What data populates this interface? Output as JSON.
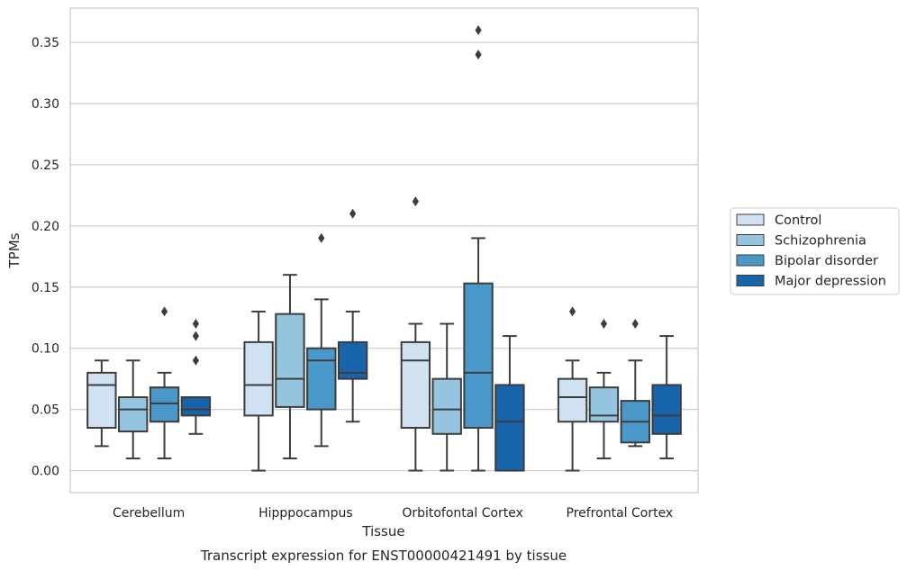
{
  "chart_data": {
    "type": "box",
    "title": "",
    "caption": "Transcript expression for ENST00000421491 by tissue",
    "xlabel": "Tissue",
    "ylabel": "TPMs",
    "ylim": [
      -0.018,
      0.378
    ],
    "yticks": [
      0.0,
      0.05,
      0.1,
      0.15,
      0.2,
      0.25,
      0.3,
      0.35
    ],
    "ytick_labels": [
      "0.00",
      "0.05",
      "0.10",
      "0.15",
      "0.20",
      "0.25",
      "0.30",
      "0.35"
    ],
    "grid": "horizontal",
    "legend_position": "right",
    "categories": [
      "Cerebellum",
      "Hipppocampus",
      "Orbitofontal Cortex",
      "Prefrontal Cortex"
    ],
    "series": [
      {
        "name": "Control",
        "color": "#d0e1f2",
        "boxes": [
          {
            "whisker_low": 0.02,
            "q1": 0.035,
            "median": 0.07,
            "q3": 0.08,
            "whisker_high": 0.09,
            "outliers": []
          },
          {
            "whisker_low": 0.0,
            "q1": 0.045,
            "median": 0.07,
            "q3": 0.105,
            "whisker_high": 0.13,
            "outliers": []
          },
          {
            "whisker_low": 0.0,
            "q1": 0.035,
            "median": 0.09,
            "q3": 0.105,
            "whisker_high": 0.12,
            "outliers": [
              0.22
            ]
          },
          {
            "whisker_low": 0.0,
            "q1": 0.04,
            "median": 0.06,
            "q3": 0.075,
            "whisker_high": 0.09,
            "outliers": [
              0.13
            ]
          }
        ]
      },
      {
        "name": "Schizophrenia",
        "color": "#94c4df",
        "boxes": [
          {
            "whisker_low": 0.01,
            "q1": 0.032,
            "median": 0.05,
            "q3": 0.06,
            "whisker_high": 0.09,
            "outliers": []
          },
          {
            "whisker_low": 0.01,
            "q1": 0.052,
            "median": 0.075,
            "q3": 0.128,
            "whisker_high": 0.16,
            "outliers": []
          },
          {
            "whisker_low": 0.0,
            "q1": 0.03,
            "median": 0.05,
            "q3": 0.075,
            "whisker_high": 0.12,
            "outliers": []
          },
          {
            "whisker_low": 0.01,
            "q1": 0.04,
            "median": 0.045,
            "q3": 0.068,
            "whisker_high": 0.08,
            "outliers": [
              0.12
            ]
          }
        ]
      },
      {
        "name": "Bipolar disorder",
        "color": "#4a98c9",
        "boxes": [
          {
            "whisker_low": 0.01,
            "q1": 0.04,
            "median": 0.055,
            "q3": 0.068,
            "whisker_high": 0.08,
            "outliers": [
              0.13
            ]
          },
          {
            "whisker_low": 0.02,
            "q1": 0.05,
            "median": 0.09,
            "q3": 0.1,
            "whisker_high": 0.14,
            "outliers": [
              0.19
            ]
          },
          {
            "whisker_low": 0.0,
            "q1": 0.035,
            "median": 0.08,
            "q3": 0.153,
            "whisker_high": 0.19,
            "outliers": [
              0.34,
              0.36
            ]
          },
          {
            "whisker_low": 0.02,
            "q1": 0.023,
            "median": 0.04,
            "q3": 0.057,
            "whisker_high": 0.09,
            "outliers": [
              0.12
            ]
          }
        ]
      },
      {
        "name": "Major depression",
        "color": "#1764ab",
        "boxes": [
          {
            "whisker_low": 0.03,
            "q1": 0.045,
            "median": 0.05,
            "q3": 0.06,
            "whisker_high": 0.06,
            "outliers": [
              0.09,
              0.11,
              0.12
            ]
          },
          {
            "whisker_low": 0.04,
            "q1": 0.075,
            "median": 0.08,
            "q3": 0.105,
            "whisker_high": 0.13,
            "outliers": [
              0.21
            ]
          },
          {
            "whisker_low": 0.0,
            "q1": 0.0,
            "median": 0.04,
            "q3": 0.07,
            "whisker_high": 0.11,
            "outliers": []
          },
          {
            "whisker_low": 0.01,
            "q1": 0.03,
            "median": 0.045,
            "q3": 0.07,
            "whisker_high": 0.11,
            "outliers": []
          }
        ]
      }
    ]
  }
}
